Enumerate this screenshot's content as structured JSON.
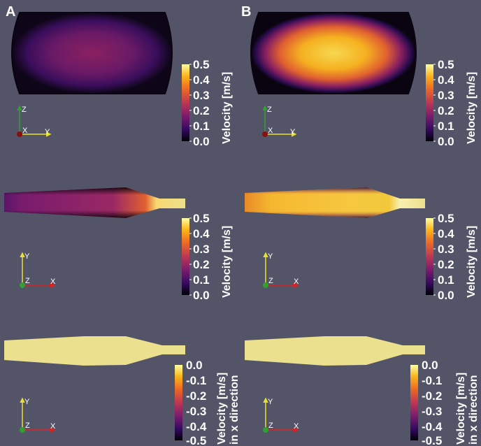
{
  "panels": {
    "A": {
      "label": "A"
    },
    "B": {
      "label": "B"
    }
  },
  "colorbars": {
    "velocity": {
      "title": "Velocity [m/s]",
      "ticks": [
        "0.5",
        "0.4",
        "0.3",
        "0.2",
        "0.1",
        "0.0"
      ]
    },
    "velocity_x": {
      "title_line1": "Velocity  [m/s]",
      "title_line2": "in x direction",
      "ticks": [
        "0.0",
        "-0.1",
        "-0.2",
        "-0.3",
        "-0.4",
        "-0.5"
      ]
    }
  },
  "axes": {
    "cross_section": {
      "up": "Z",
      "center": "X",
      "right": "Y"
    },
    "longitudinal": {
      "up": "Y",
      "center": "Z",
      "right": "X"
    }
  },
  "colors": {
    "background": "#545469",
    "inferno": [
      "#000004",
      "#320a5e",
      "#781c6d",
      "#bc3754",
      "#ed6925",
      "#fbb61a",
      "#fcffa4"
    ],
    "axis_x": "#e02020",
    "axis_y": "#e8e030",
    "axis_z": "#30a030"
  }
}
